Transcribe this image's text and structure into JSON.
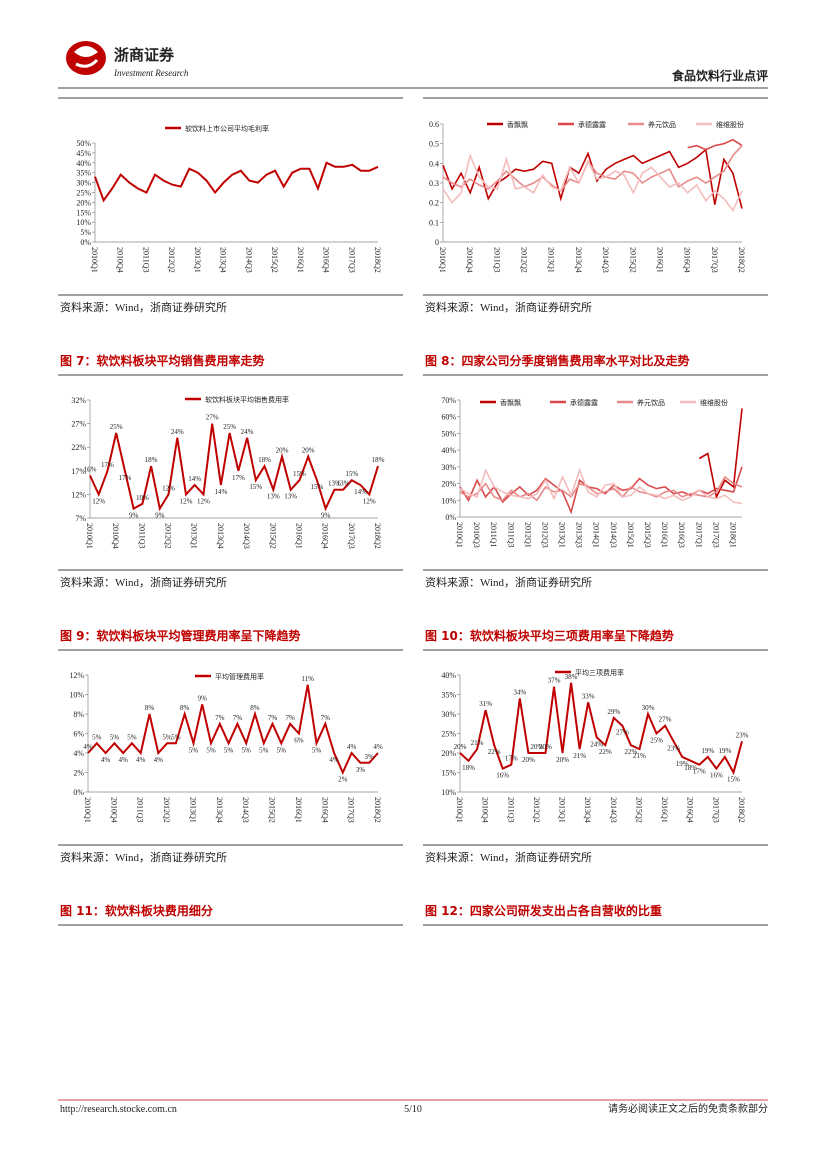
{
  "header": {
    "brand": "浙商证券",
    "brand_en": "Investment Research",
    "section": "食品饮料行业点评"
  },
  "captions": [
    "图 7：软饮料板块平均销售费用率走势",
    "图 8：四家公司分季度销售费用率水平对比及走势",
    "图 9：软饮料板块平均管理费用率呈下降趋势",
    "图 10：软饮料板块平均三项费用率呈下降趋势",
    "图 11：软饮料板块费用细分",
    "图 12：四家公司研发支出占各自营收的比重"
  ],
  "footer": {
    "url": "http://research.stocke.com.cn",
    "page": "5/10",
    "disclaimer": "请务必阅读正文之后的免责条款部分"
  },
  "chart_data": [
    {
      "type": "line",
      "source": "资料来源：Wind，浙商证券研究所",
      "categories": [
        "2010Q1",
        null,
        null,
        "2010Q4",
        null,
        null,
        "2011Q3",
        null,
        null,
        "2012Q2",
        null,
        null,
        "2013Q1",
        null,
        null,
        "2013Q4",
        null,
        null,
        "2014Q3",
        null,
        null,
        "2015Q2",
        null,
        null,
        "2016Q1",
        null,
        null,
        "2016Q4",
        null,
        null,
        "2017Q3",
        null,
        null,
        "2018Q2"
      ],
      "ylim": [
        0,
        50
      ],
      "yticks": [
        {
          "value": 0,
          "label": "0%"
        },
        {
          "value": 5,
          "label": "5%"
        },
        {
          "value": 10,
          "label": "10%"
        },
        {
          "value": 15,
          "label": "15%"
        },
        {
          "value": 20,
          "label": "20%"
        },
        {
          "value": 25,
          "label": "25%"
        },
        {
          "value": 30,
          "label": "30%"
        },
        {
          "value": 35,
          "label": "35%"
        },
        {
          "value": 40,
          "label": "40%"
        },
        {
          "value": 45,
          "label": "45%"
        },
        {
          "value": 50,
          "label": "50%"
        }
      ],
      "series": [
        {
          "name": "软饮料上市公司平均毛利率",
          "color": "#c00000",
          "values": [
            33,
            21,
            27,
            34,
            30,
            27,
            25,
            34,
            31,
            29,
            28,
            37,
            35,
            31,
            25,
            30,
            34,
            36,
            31,
            30,
            34,
            36,
            28,
            35,
            37,
            37,
            27,
            40,
            38,
            38,
            39,
            36,
            36,
            38
          ]
        }
      ]
    },
    {
      "type": "line",
      "source": "资料来源：Wind，浙商证券研究所",
      "categories": [
        "2010Q1",
        null,
        null,
        "2010Q4",
        null,
        null,
        "2011Q3",
        null,
        null,
        "2012Q2",
        null,
        null,
        "2013Q1",
        null,
        null,
        "2013Q4",
        null,
        null,
        "2014Q3",
        null,
        null,
        "2015Q2",
        null,
        null,
        "2016Q1",
        null,
        null,
        "2016Q4",
        null,
        null,
        "2017Q3",
        null,
        null,
        "2018Q2"
      ],
      "ylim": [
        0,
        0.6
      ],
      "yticks": [
        0,
        0.1,
        0.2,
        0.3,
        0.4,
        0.5,
        0.6
      ],
      "series": [
        {
          "name": "香飘飘",
          "color": "#c00000",
          "values": [
            0.39,
            0.27,
            0.35,
            0.25,
            0.38,
            0.22,
            0.3,
            0.33,
            0.37,
            0.36,
            0.37,
            0.41,
            0.4,
            0.22,
            0.38,
            0.35,
            0.45,
            0.31,
            0.37,
            0.4,
            0.42,
            0.44,
            0.4,
            0.42,
            0.44,
            0.46,
            0.38,
            0.4,
            0.43,
            0.47,
            0.19,
            0.42,
            0.35,
            0.17
          ]
        },
        {
          "name": "承德露露",
          "color": "#d9484a",
          "values": [
            null,
            null,
            null,
            null,
            null,
            null,
            null,
            null,
            null,
            null,
            null,
            null,
            null,
            null,
            null,
            null,
            null,
            null,
            null,
            null,
            null,
            null,
            null,
            null,
            null,
            null,
            null,
            0.48,
            0.49,
            0.47,
            0.49,
            0.5,
            0.52,
            0.49
          ]
        },
        {
          "name": "养元饮品",
          "color": "#e88a8a",
          "values": [
            0.33,
            0.3,
            0.28,
            0.32,
            0.29,
            0.27,
            0.31,
            0.36,
            0.32,
            0.28,
            0.3,
            0.33,
            0.29,
            0.26,
            0.32,
            0.3,
            0.41,
            0.35,
            0.33,
            0.32,
            0.36,
            0.35,
            0.3,
            0.33,
            0.35,
            0.37,
            0.28,
            0.31,
            0.33,
            0.3,
            0.33,
            0.36,
            0.44,
            0.49
          ]
        },
        {
          "name": "维维股份",
          "color": "#f4bcbc",
          "values": [
            0.27,
            0.2,
            0.25,
            0.44,
            0.33,
            0.28,
            0.27,
            0.42,
            0.27,
            0.28,
            0.25,
            0.34,
            0.28,
            0.26,
            0.38,
            0.3,
            0.41,
            0.32,
            0.33,
            0.36,
            0.34,
            0.25,
            0.35,
            0.38,
            0.33,
            0.28,
            0.3,
            0.25,
            0.29,
            0.21,
            0.26,
            0.22,
            0.16,
            0.26
          ]
        }
      ]
    },
    {
      "type": "line",
      "source": "资料来源：Wind，浙商证券研究所",
      "categories": [
        "2010Q1",
        null,
        null,
        "2010Q4",
        null,
        null,
        "2011Q3",
        null,
        null,
        "2012Q2",
        null,
        null,
        "2013Q1",
        null,
        null,
        "2013Q4",
        null,
        null,
        "2014Q3",
        null,
        null,
        "2015Q2",
        null,
        null,
        "2016Q1",
        null,
        null,
        "2016Q4",
        null,
        null,
        "2017Q3",
        null,
        null,
        "2018Q2"
      ],
      "ylim": [
        7,
        32
      ],
      "yticks": [
        {
          "value": 7,
          "label": "7%"
        },
        {
          "value": 12,
          "label": "12%"
        },
        {
          "value": 17,
          "label": "17%"
        },
        {
          "value": 22,
          "label": "22%"
        },
        {
          "value": 27,
          "label": "27%"
        },
        {
          "value": 32,
          "label": "32%"
        }
      ],
      "series": [
        {
          "name": "软饮料板块平均销售费用率",
          "color": "#c00000",
          "values": [
            16,
            12,
            17,
            25,
            17,
            9,
            10,
            18,
            9,
            12,
            24,
            12,
            14,
            12,
            27,
            14,
            25,
            17,
            24,
            15,
            18,
            13,
            20,
            13,
            15,
            20,
            15,
            9,
            13,
            13,
            15,
            14,
            12,
            18
          ],
          "value_labels": [
            "16%",
            "12%",
            "17%",
            "25%",
            "17%",
            "9%",
            "10%",
            "18%",
            "9%",
            "12%",
            "24%",
            "12%",
            "14%",
            "12%",
            "27%",
            "14%",
            "25%",
            "17%",
            "24%",
            "15%",
            "18%",
            "13%",
            "20%",
            "13%",
            "15%",
            "20%",
            "15%",
            "9%",
            "13%",
            "13%",
            "15%",
            "14%",
            "12%",
            "18%"
          ]
        }
      ]
    },
    {
      "type": "line",
      "source": "资料来源：Wind，浙商证券研究所",
      "categories": [
        "2010Q1",
        null,
        "2010Q3",
        null,
        "2011Q1",
        null,
        "2011Q3",
        null,
        "2012Q1",
        null,
        "2012Q3",
        null,
        "2013Q1",
        null,
        "2013Q3",
        null,
        "2014Q1",
        null,
        "2014Q3",
        null,
        "2015Q1",
        null,
        "2015Q3",
        null,
        "2016Q1",
        null,
        "2016Q3",
        null,
        "2017Q1",
        null,
        "2017Q3",
        null,
        "2018Q1",
        null
      ],
      "ylim": [
        0,
        70
      ],
      "yticks": [
        {
          "value": 0,
          "label": "0%"
        },
        {
          "value": 10,
          "label": "10%"
        },
        {
          "value": 20,
          "label": "20%"
        },
        {
          "value": 30,
          "label": "30%"
        },
        {
          "value": 40,
          "label": "40%"
        },
        {
          "value": 50,
          "label": "50%"
        },
        {
          "value": 60,
          "label": "60%"
        },
        {
          "value": 70,
          "label": "70%"
        }
      ],
      "series": [
        {
          "name": "香飘飘",
          "color": "#c00000",
          "values": [
            null,
            null,
            null,
            null,
            null,
            null,
            null,
            null,
            null,
            null,
            null,
            null,
            null,
            null,
            null,
            null,
            null,
            null,
            null,
            null,
            null,
            null,
            null,
            null,
            null,
            null,
            null,
            null,
            35,
            38,
            12,
            22,
            18,
            65
          ]
        },
        {
          "name": "承德露露",
          "color": "#d9484a",
          "values": [
            18,
            10,
            22,
            12,
            18,
            9,
            14,
            18,
            13,
            16,
            23,
            19,
            15,
            3,
            22,
            18,
            17,
            14,
            19,
            16,
            17,
            23,
            19,
            17,
            18,
            14,
            15,
            13,
            16,
            14,
            17,
            16,
            15,
            30
          ]
        },
        {
          "name": "养元饮品",
          "color": "#e88a8a",
          "values": [
            15,
            12,
            14,
            20,
            12,
            10,
            16,
            12,
            14,
            10,
            18,
            15,
            16,
            12,
            20,
            18,
            14,
            15,
            17,
            12,
            18,
            15,
            14,
            12,
            15,
            16,
            12,
            14,
            13,
            12,
            15,
            24,
            20,
            18
          ]
        },
        {
          "name": "维维股份",
          "color": "#f4bcbc",
          "values": [
            17,
            14,
            12,
            28,
            18,
            15,
            13,
            12,
            11,
            14,
            22,
            11,
            24,
            13,
            28,
            15,
            12,
            19,
            20,
            12,
            13,
            18,
            14,
            13,
            11,
            13,
            10,
            12,
            16,
            12,
            11,
            13,
            9,
            8
          ]
        }
      ]
    },
    {
      "type": "line",
      "source": "资料来源：Wind，浙商证券研究所",
      "categories": [
        "2010Q1",
        null,
        null,
        "2010Q4",
        null,
        null,
        "2011Q3",
        null,
        null,
        "2012Q2",
        null,
        null,
        "2013Q1",
        null,
        null,
        "2013Q4",
        null,
        null,
        "2014Q3",
        null,
        null,
        "2015Q2",
        null,
        null,
        "2016Q1",
        null,
        null,
        "2016Q4",
        null,
        null,
        "2017Q3",
        null,
        null,
        "2018Q2"
      ],
      "ylim": [
        0,
        12
      ],
      "yticks": [
        {
          "value": 0,
          "label": "0%"
        },
        {
          "value": 2,
          "label": "2%"
        },
        {
          "value": 4,
          "label": "4%"
        },
        {
          "value": 6,
          "label": "6%"
        },
        {
          "value": 8,
          "label": "8%"
        },
        {
          "value": 10,
          "label": "10%"
        },
        {
          "value": 12,
          "label": "12%"
        }
      ],
      "series": [
        {
          "name": "平均管理费用率",
          "color": "#c00000",
          "values": [
            4,
            5,
            4,
            5,
            4,
            5,
            4,
            8,
            4,
            5,
            5,
            8,
            5,
            9,
            5,
            7,
            5,
            7,
            5,
            8,
            5,
            7,
            5,
            7,
            6,
            11,
            5,
            7,
            4,
            2,
            4,
            3,
            3,
            4
          ],
          "value_labels": [
            "4%",
            "5%",
            "4%",
            "5%",
            "4%",
            "5%",
            "4%",
            "8%",
            "4%",
            "5%",
            "5%",
            "8%",
            "5%",
            "9%",
            "5%",
            "7%",
            "5%",
            "7%",
            "5%",
            "8%",
            "5%",
            "7%",
            "5%",
            "7%",
            "6%",
            "11%",
            "5%",
            "7%",
            "4%",
            "2%",
            "4%",
            "3%",
            "3%",
            "4%"
          ]
        }
      ]
    },
    {
      "type": "line",
      "source": "资料来源：Wind，浙商证券研究所",
      "categories": [
        "2010Q1",
        null,
        null,
        "2010Q4",
        null,
        null,
        "2011Q3",
        null,
        null,
        "2012Q2",
        null,
        null,
        "2013Q1",
        null,
        null,
        "2013Q4",
        null,
        null,
        "2014Q3",
        null,
        null,
        "2015Q2",
        null,
        null,
        "2016Q1",
        null,
        null,
        "2016Q4",
        null,
        null,
        "2017Q3",
        null,
        null,
        "2018Q2"
      ],
      "ylim": [
        10,
        40
      ],
      "yticks": [
        {
          "value": 10,
          "label": "10%"
        },
        {
          "value": 15,
          "label": "15%"
        },
        {
          "value": 20,
          "label": "20%"
        },
        {
          "value": 25,
          "label": "25%"
        },
        {
          "value": 30,
          "label": "30%"
        },
        {
          "value": 35,
          "label": "35%"
        },
        {
          "value": 40,
          "label": "40%"
        }
      ],
      "series": [
        {
          "name": "平均三项费用率",
          "color": "#c00000",
          "values": [
            20,
            18,
            21,
            31,
            22,
            16,
            17,
            34,
            20,
            20,
            20,
            37,
            20,
            38,
            21,
            33,
            24,
            22,
            29,
            27,
            22,
            21,
            30,
            25,
            27,
            23,
            19,
            18,
            17,
            19,
            16,
            19,
            15,
            23
          ],
          "value_labels": [
            "20%",
            "18%",
            "21%",
            "31%",
            "22%",
            "16%",
            "17%",
            "34%",
            "20%",
            "20%",
            "20%",
            "37%",
            "20%",
            "38%",
            "21%",
            "33%",
            "24%",
            "22%",
            "29%",
            "27%",
            "22%",
            "21%",
            "30%",
            "25%",
            "27%",
            "23%",
            "19%",
            "18%",
            "17%",
            "19%",
            "16%",
            "19%",
            "15%",
            "23%"
          ]
        }
      ]
    }
  ]
}
